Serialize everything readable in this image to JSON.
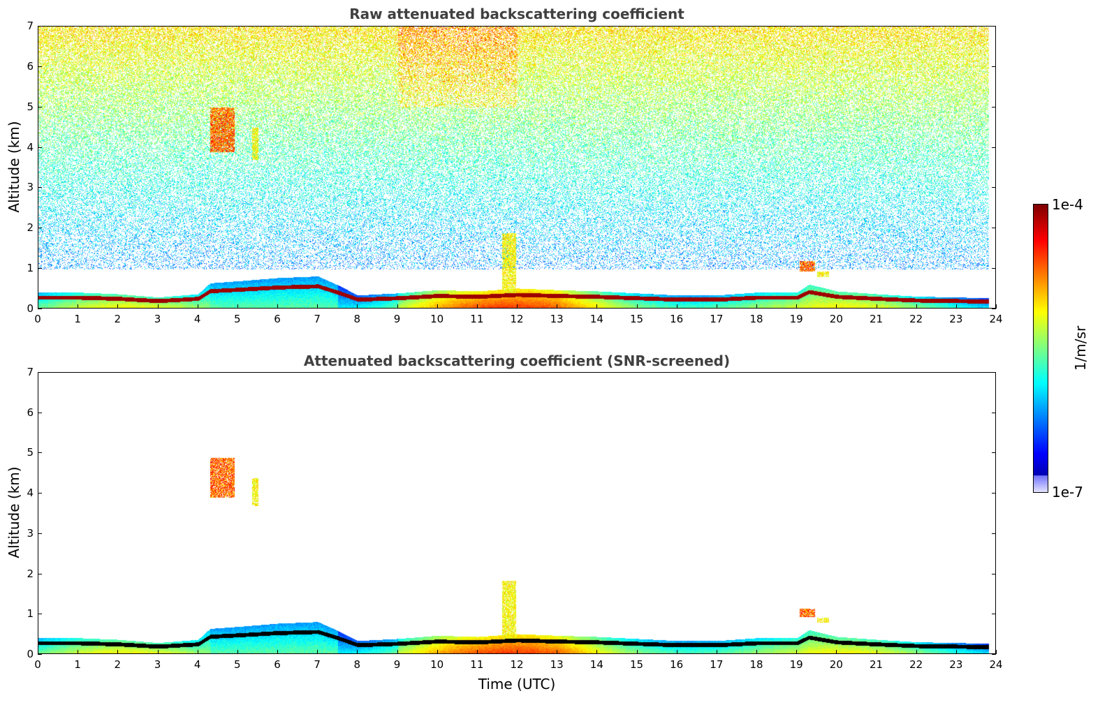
{
  "colors": {
    "background": "#ffffff",
    "axis": "#000000",
    "title": "#404040",
    "scattering_layer_core": "#b00000",
    "screened_layer_core": "#000000"
  },
  "colorbar": {
    "colormap": "jet",
    "max_label": "1e-4",
    "min_label": "1e-7",
    "unit_label": "1/m/sr",
    "scale": "log",
    "range": [
      1e-07,
      0.0001
    ]
  },
  "chart_data": [
    {
      "type": "heatmap",
      "title": "Raw attenuated backscattering coefficient",
      "xlabel": "",
      "ylabel": "Altitude (km)",
      "xlim": [
        0,
        24
      ],
      "ylim": [
        0,
        7
      ],
      "x_ticks": [
        "0",
        "1",
        "2",
        "3",
        "4",
        "5",
        "6",
        "7",
        "8",
        "9",
        "10",
        "11",
        "12",
        "13",
        "14",
        "15",
        "16",
        "17",
        "18",
        "19",
        "20",
        "21",
        "22",
        "23",
        "24"
      ],
      "y_ticks": [
        "0",
        "1",
        "2",
        "3",
        "4",
        "5",
        "6",
        "7"
      ],
      "data_extent_x": [
        0,
        23.8
      ],
      "colorbar_range": [
        1e-07,
        0.0001
      ],
      "boundary_layer_top_km": {
        "time": [
          0,
          1,
          2,
          3,
          4,
          4.3,
          5,
          6,
          7,
          7.5,
          8,
          9,
          10,
          11,
          12,
          13,
          14,
          15,
          16,
          17,
          18,
          19,
          19.3,
          20,
          21,
          22,
          23,
          23.8
        ],
        "height": [
          0.42,
          0.42,
          0.38,
          0.3,
          0.38,
          0.65,
          0.7,
          0.78,
          0.82,
          0.6,
          0.35,
          0.4,
          0.48,
          0.45,
          0.52,
          0.48,
          0.45,
          0.4,
          0.35,
          0.35,
          0.42,
          0.42,
          0.62,
          0.45,
          0.38,
          0.32,
          0.3,
          0.28
        ]
      },
      "features": [
        {
          "label": "",
          "time_range": [
            4.3,
            4.9
          ],
          "altitude_range": [
            3.9,
            5.0
          ],
          "peak": "high"
        },
        {
          "label": "",
          "time_range": [
            5.35,
            5.5
          ],
          "altitude_range": [
            3.7,
            4.5
          ],
          "peak": "moderate"
        },
        {
          "label": "",
          "time_range": [
            11.6,
            11.95
          ],
          "altitude_range": [
            0.4,
            1.9
          ],
          "peak": "moderate"
        },
        {
          "label": "",
          "time_range": [
            19.05,
            19.45
          ],
          "altitude_range": [
            0.95,
            1.2
          ],
          "peak": "high"
        },
        {
          "label": "",
          "time_range": [
            19.5,
            19.8
          ],
          "altitude_range": [
            0.8,
            0.95
          ],
          "peak": "moderate"
        }
      ]
    },
    {
      "type": "heatmap",
      "title": "Attenuated backscattering coefficient (SNR-screened)",
      "xlabel": "Time (UTC)",
      "ylabel": "Altitude (km)",
      "xlim": [
        0,
        24
      ],
      "ylim": [
        0,
        7
      ],
      "x_ticks": [
        "0",
        "1",
        "2",
        "3",
        "4",
        "5",
        "6",
        "7",
        "8",
        "9",
        "10",
        "11",
        "12",
        "13",
        "14",
        "15",
        "16",
        "17",
        "18",
        "19",
        "20",
        "21",
        "22",
        "23",
        "24"
      ],
      "y_ticks": [
        "0",
        "1",
        "2",
        "3",
        "4",
        "5",
        "6",
        "7"
      ],
      "data_extent_x": [
        0,
        23.8
      ],
      "colorbar_range": [
        1e-07,
        0.0001
      ],
      "boundary_layer_top_km": {
        "time": [
          0,
          1,
          2,
          3,
          4,
          4.3,
          5,
          6,
          7,
          7.5,
          8,
          9,
          10,
          11,
          12,
          13,
          14,
          15,
          16,
          17,
          18,
          19,
          19.3,
          20,
          21,
          22,
          23,
          23.8
        ],
        "height": [
          0.42,
          0.42,
          0.38,
          0.3,
          0.38,
          0.65,
          0.7,
          0.78,
          0.82,
          0.6,
          0.35,
          0.4,
          0.48,
          0.45,
          0.52,
          0.48,
          0.45,
          0.4,
          0.35,
          0.35,
          0.42,
          0.42,
          0.62,
          0.45,
          0.38,
          0.32,
          0.3,
          0.28
        ]
      },
      "features": [
        {
          "label": "",
          "time_range": [
            4.3,
            4.9
          ],
          "altitude_range": [
            3.9,
            4.9
          ],
          "peak": "high"
        },
        {
          "label": "",
          "time_range": [
            5.35,
            5.5
          ],
          "altitude_range": [
            3.7,
            4.4
          ],
          "peak": "moderate"
        },
        {
          "label": "",
          "time_range": [
            11.6,
            11.95
          ],
          "altitude_range": [
            0.4,
            1.85
          ],
          "peak": "moderate"
        },
        {
          "label": "",
          "time_range": [
            19.05,
            19.45
          ],
          "altitude_range": [
            0.95,
            1.15
          ],
          "peak": "high"
        },
        {
          "label": "",
          "time_range": [
            19.5,
            19.8
          ],
          "altitude_range": [
            0.8,
            0.92
          ],
          "peak": "moderate"
        }
      ]
    }
  ]
}
